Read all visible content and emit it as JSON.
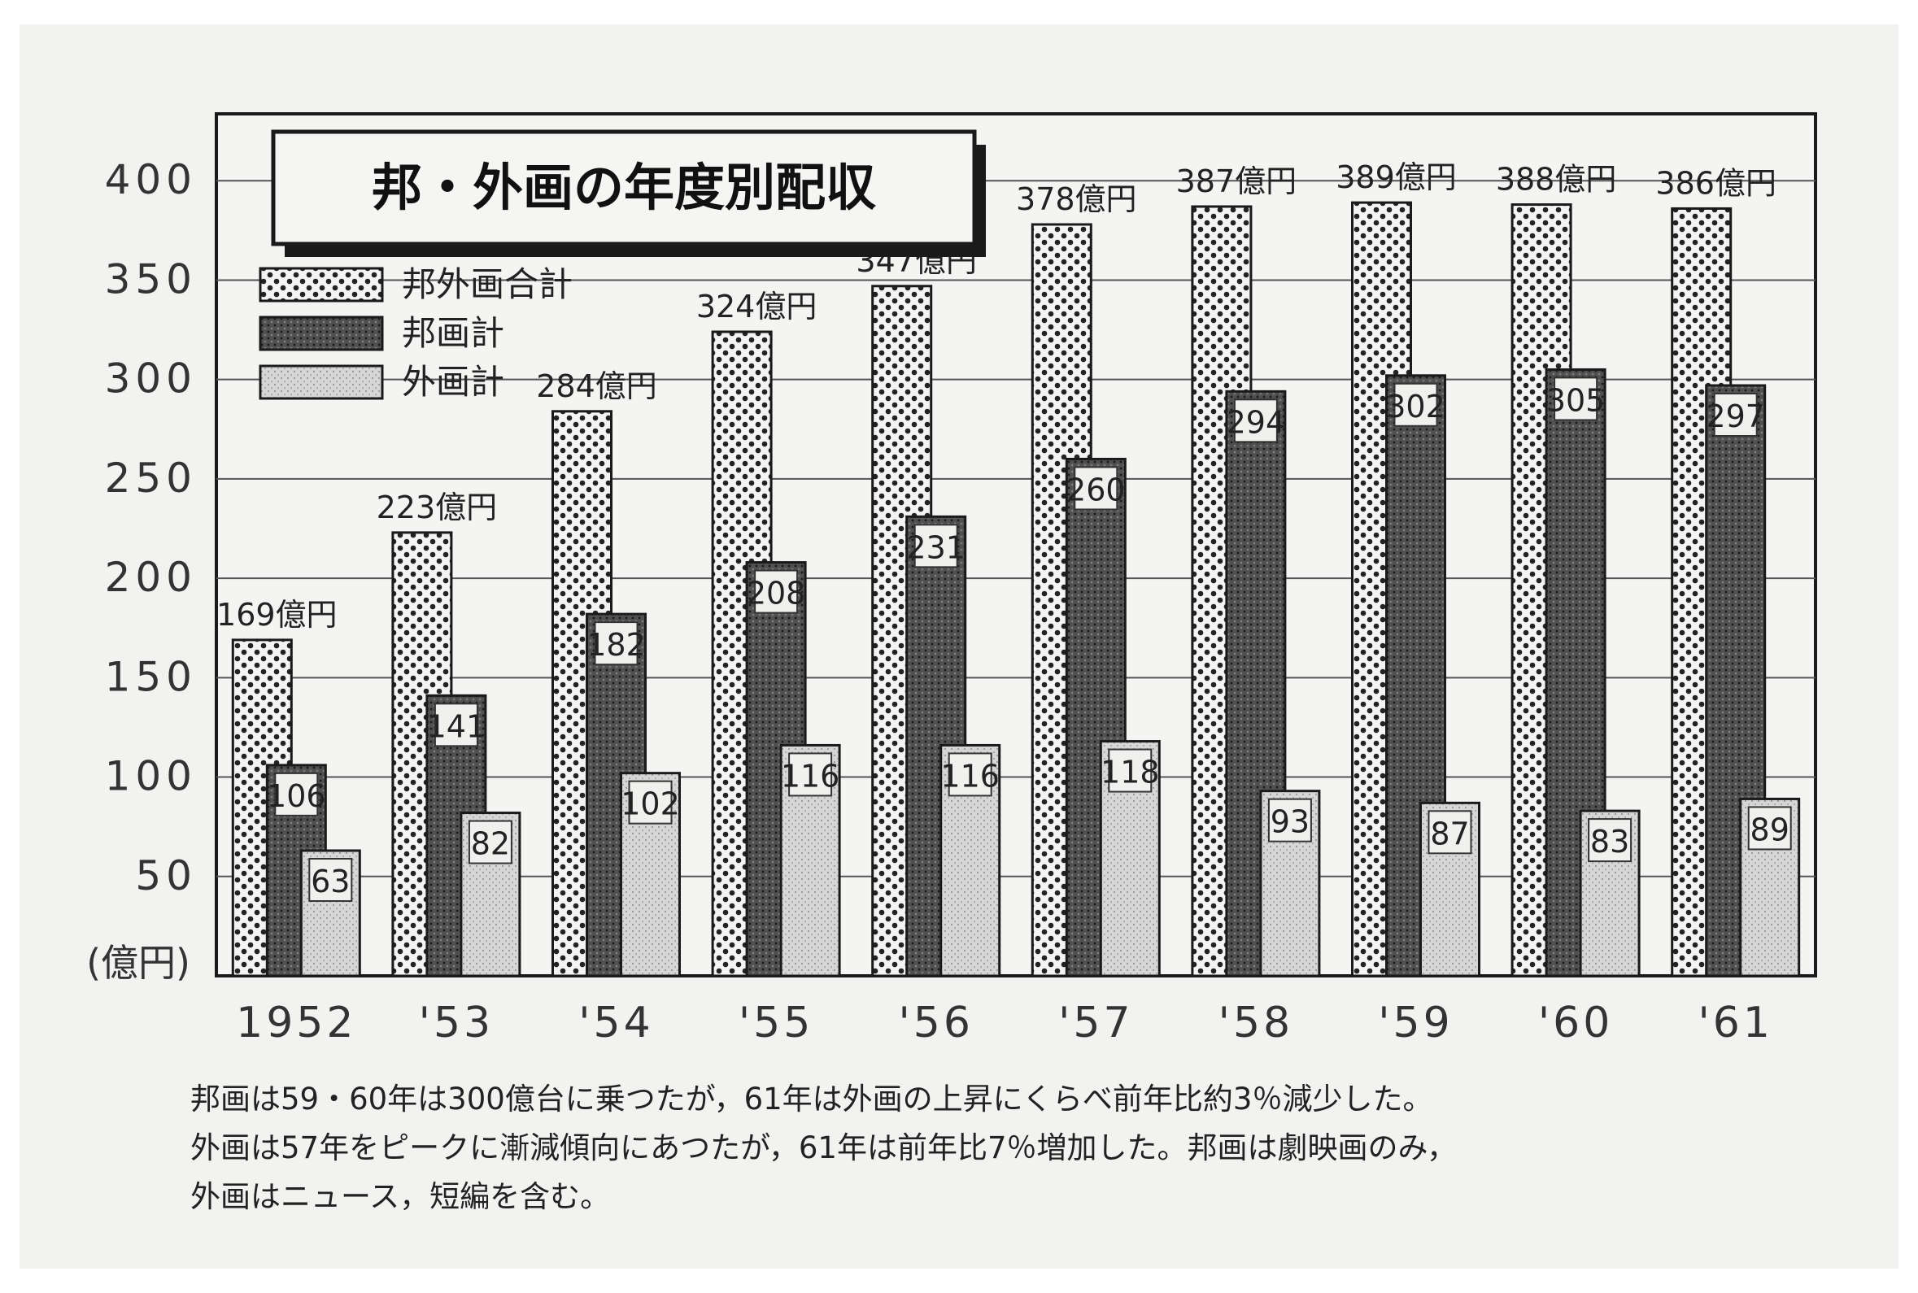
{
  "chart_data": {
    "type": "bar",
    "title": "邦・外画の年度別配収",
    "yunit": "(億円)",
    "ylim": [
      0,
      400
    ],
    "yticks": [
      "50",
      "100",
      "150",
      "200",
      "250",
      "300",
      "350",
      "400"
    ],
    "categories": [
      "1952",
      "'53",
      "'54",
      "'55",
      "'56",
      "'57",
      "'58",
      "'59",
      "'60",
      "'61"
    ],
    "series": [
      {
        "name": "邦外画合計",
        "values": [
          169,
          223,
          284,
          324,
          347,
          378,
          387,
          389,
          388,
          386
        ]
      },
      {
        "name": "邦画計",
        "values": [
          106,
          141,
          182,
          208,
          231,
          260,
          294,
          302,
          305,
          297
        ]
      },
      {
        "name": "外画計",
        "values": [
          63,
          82,
          102,
          116,
          116,
          118,
          93,
          87,
          83,
          89
        ]
      }
    ],
    "total_labels": [
      "169億円",
      "223億円",
      "284億円",
      "324億円",
      "347億円",
      "378億円",
      "387億円",
      "389億円",
      "388億円",
      "386億円"
    ],
    "legend_position": "top-left",
    "grid": true,
    "colors": {
      "frame": "#1a1a1a",
      "total_fill": "#f3f3f3",
      "domestic_fill": "#4a4a4a",
      "foreign_fill": "#d2d2d2"
    }
  },
  "caption": {
    "lines": [
      "邦画は59・60年は300億台に乗つたが，61年は外画の上昇にくらべ前年比約3％減少した。",
      "外画は57年をピークに漸減傾向にあつたが，61年は前年比7％増加した。邦画は劇映画のみ，",
      "外画はニュース，短編を含む。"
    ]
  }
}
